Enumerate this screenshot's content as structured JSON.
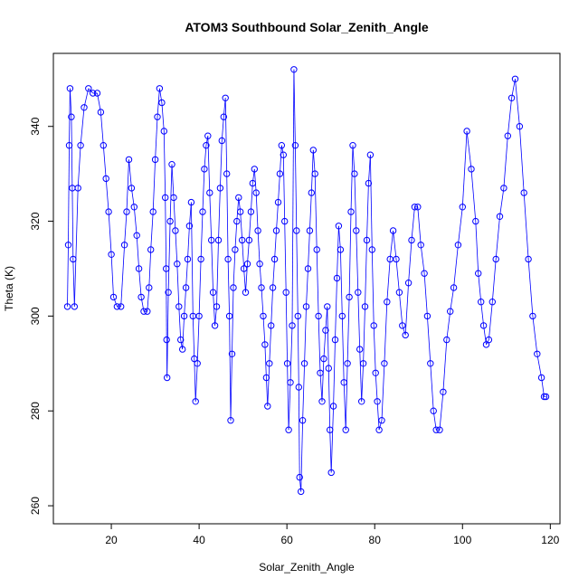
{
  "chart_data": {
    "type": "scatter",
    "title": "ATOM3 Southbound Solar_Zenith_Angle",
    "xlabel": "Solar_Zenith_Angle",
    "ylabel": "Theta (K)",
    "xlim": [
      6.8,
      122.2
    ],
    "ylim": [
      256.2,
      355.4
    ],
    "xticks": [
      "20",
      "40",
      "60",
      "80",
      "100",
      "120"
    ],
    "yticks": [
      "260",
      "280",
      "300",
      "320",
      "340"
    ],
    "grid": false,
    "legend": "none",
    "color": "#0000ff",
    "series": [
      {
        "points": [
          [
            10,
            302
          ],
          [
            10.2,
            315
          ],
          [
            10.4,
            336
          ],
          [
            10.6,
            348
          ],
          [
            10.9,
            342
          ],
          [
            11.1,
            327
          ],
          [
            11.3,
            312
          ],
          [
            11.6,
            302
          ],
          [
            12.4,
            327
          ],
          [
            13,
            336
          ],
          [
            13.8,
            344
          ],
          [
            14.8,
            348
          ],
          [
            15.8,
            347
          ],
          [
            16.8,
            347
          ],
          [
            17.6,
            343
          ],
          [
            18.2,
            336
          ],
          [
            18.8,
            329
          ],
          [
            19.4,
            322
          ],
          [
            20,
            313
          ],
          [
            20.5,
            304
          ],
          [
            21.3,
            302
          ],
          [
            22.2,
            302
          ],
          [
            23,
            315
          ],
          [
            23.5,
            322
          ],
          [
            24,
            333
          ],
          [
            24.6,
            327
          ],
          [
            25.2,
            323
          ],
          [
            25.8,
            317
          ],
          [
            26.3,
            310
          ],
          [
            26.8,
            304
          ],
          [
            27.4,
            301
          ],
          [
            28.2,
            301
          ],
          [
            28.6,
            306
          ],
          [
            29,
            314
          ],
          [
            29.5,
            322
          ],
          [
            30,
            333
          ],
          [
            30.5,
            342
          ],
          [
            31,
            348
          ],
          [
            31.5,
            345
          ],
          [
            32,
            339
          ],
          [
            32.3,
            325
          ],
          [
            32.5,
            310
          ],
          [
            32.6,
            295
          ],
          [
            32.7,
            287
          ],
          [
            33,
            305
          ],
          [
            33.4,
            320
          ],
          [
            33.8,
            332
          ],
          [
            34.2,
            325
          ],
          [
            34.6,
            318
          ],
          [
            35,
            311
          ],
          [
            35.4,
            302
          ],
          [
            35.8,
            295
          ],
          [
            36.2,
            293
          ],
          [
            36.6,
            300
          ],
          [
            37,
            306
          ],
          [
            37.4,
            312
          ],
          [
            37.8,
            319
          ],
          [
            38.2,
            324
          ],
          [
            38.6,
            300
          ],
          [
            38.9,
            291
          ],
          [
            39.2,
            282
          ],
          [
            39.6,
            290
          ],
          [
            40,
            300
          ],
          [
            40.4,
            312
          ],
          [
            40.8,
            322
          ],
          [
            41.2,
            331
          ],
          [
            41.6,
            336
          ],
          [
            42,
            338
          ],
          [
            42.4,
            326
          ],
          [
            42.8,
            316
          ],
          [
            43.2,
            305
          ],
          [
            43.6,
            298
          ],
          [
            44,
            302
          ],
          [
            44.4,
            316
          ],
          [
            44.8,
            327
          ],
          [
            45.2,
            337
          ],
          [
            45.6,
            342
          ],
          [
            46,
            346
          ],
          [
            46.3,
            330
          ],
          [
            46.6,
            312
          ],
          [
            46.9,
            300
          ],
          [
            47.2,
            278
          ],
          [
            47.5,
            292
          ],
          [
            47.8,
            306
          ],
          [
            48.2,
            314
          ],
          [
            48.6,
            320
          ],
          [
            49,
            325
          ],
          [
            49.4,
            322
          ],
          [
            49.8,
            316
          ],
          [
            50.2,
            310
          ],
          [
            50.6,
            305
          ],
          [
            51,
            311
          ],
          [
            51.4,
            316
          ],
          [
            51.8,
            322
          ],
          [
            52.2,
            328
          ],
          [
            52.6,
            331
          ],
          [
            53,
            326
          ],
          [
            53.4,
            318
          ],
          [
            53.8,
            311
          ],
          [
            54.2,
            306
          ],
          [
            54.6,
            300
          ],
          [
            55,
            294
          ],
          [
            55.3,
            287
          ],
          [
            55.6,
            281
          ],
          [
            56,
            290
          ],
          [
            56.4,
            298
          ],
          [
            56.8,
            306
          ],
          [
            57.2,
            312
          ],
          [
            57.6,
            318
          ],
          [
            58,
            324
          ],
          [
            58.4,
            330
          ],
          [
            58.8,
            336
          ],
          [
            59.2,
            334
          ],
          [
            59.5,
            320
          ],
          [
            59.8,
            305
          ],
          [
            60.1,
            290
          ],
          [
            60.4,
            276
          ],
          [
            60.8,
            286
          ],
          [
            61.2,
            298
          ],
          [
            61.6,
            352
          ],
          [
            61.9,
            336
          ],
          [
            62.2,
            318
          ],
          [
            62.5,
            300
          ],
          [
            62.7,
            285
          ],
          [
            62.9,
            266
          ],
          [
            63.2,
            263
          ],
          [
            63.6,
            278
          ],
          [
            64,
            290
          ],
          [
            64.4,
            302
          ],
          [
            64.8,
            310
          ],
          [
            65.2,
            318
          ],
          [
            65.6,
            326
          ],
          [
            66,
            335
          ],
          [
            66.4,
            330
          ],
          [
            66.8,
            314
          ],
          [
            67.2,
            300
          ],
          [
            67.6,
            288
          ],
          [
            68,
            282
          ],
          [
            68.4,
            291
          ],
          [
            68.8,
            297
          ],
          [
            69.2,
            302
          ],
          [
            69.5,
            289
          ],
          [
            69.8,
            276
          ],
          [
            70.1,
            267
          ],
          [
            70.6,
            281
          ],
          [
            71,
            295
          ],
          [
            71.4,
            308
          ],
          [
            71.8,
            319
          ],
          [
            72.2,
            314
          ],
          [
            72.6,
            300
          ],
          [
            73,
            286
          ],
          [
            73.4,
            276
          ],
          [
            73.8,
            290
          ],
          [
            74.2,
            304
          ],
          [
            74.6,
            322
          ],
          [
            75,
            336
          ],
          [
            75.4,
            330
          ],
          [
            75.8,
            318
          ],
          [
            76.2,
            305
          ],
          [
            76.6,
            293
          ],
          [
            77,
            282
          ],
          [
            77.4,
            290
          ],
          [
            77.8,
            302
          ],
          [
            78.2,
            316
          ],
          [
            78.6,
            328
          ],
          [
            79,
            334
          ],
          [
            79.4,
            314
          ],
          [
            79.8,
            298
          ],
          [
            80.2,
            288
          ],
          [
            80.6,
            282
          ],
          [
            81,
            276
          ],
          [
            81.6,
            278
          ],
          [
            82.2,
            290
          ],
          [
            82.8,
            303
          ],
          [
            83.5,
            312
          ],
          [
            84.2,
            318
          ],
          [
            84.9,
            312
          ],
          [
            85.6,
            305
          ],
          [
            86.3,
            298
          ],
          [
            87,
            296
          ],
          [
            87.7,
            307
          ],
          [
            88.4,
            316
          ],
          [
            89.1,
            323
          ],
          [
            89.8,
            323
          ],
          [
            90.5,
            315
          ],
          [
            91.3,
            309
          ],
          [
            92,
            300
          ],
          [
            92.7,
            290
          ],
          [
            93.4,
            280
          ],
          [
            94,
            276
          ],
          [
            94.8,
            276
          ],
          [
            95.6,
            284
          ],
          [
            96.4,
            295
          ],
          [
            97.2,
            301
          ],
          [
            98,
            306
          ],
          [
            99,
            315
          ],
          [
            100,
            323
          ],
          [
            101,
            339
          ],
          [
            102,
            331
          ],
          [
            103,
            320
          ],
          [
            103.6,
            309
          ],
          [
            104.2,
            303
          ],
          [
            104.8,
            298
          ],
          [
            105.4,
            294
          ],
          [
            106,
            295
          ],
          [
            106.8,
            303
          ],
          [
            107.6,
            312
          ],
          [
            108.5,
            321
          ],
          [
            109.4,
            327
          ],
          [
            110.3,
            338
          ],
          [
            111.2,
            346
          ],
          [
            112,
            350
          ],
          [
            113,
            340
          ],
          [
            114,
            326
          ],
          [
            115,
            312
          ],
          [
            116,
            300
          ],
          [
            117,
            292
          ],
          [
            118,
            287
          ],
          [
            118.6,
            283
          ],
          [
            119,
            283
          ]
        ]
      }
    ]
  }
}
